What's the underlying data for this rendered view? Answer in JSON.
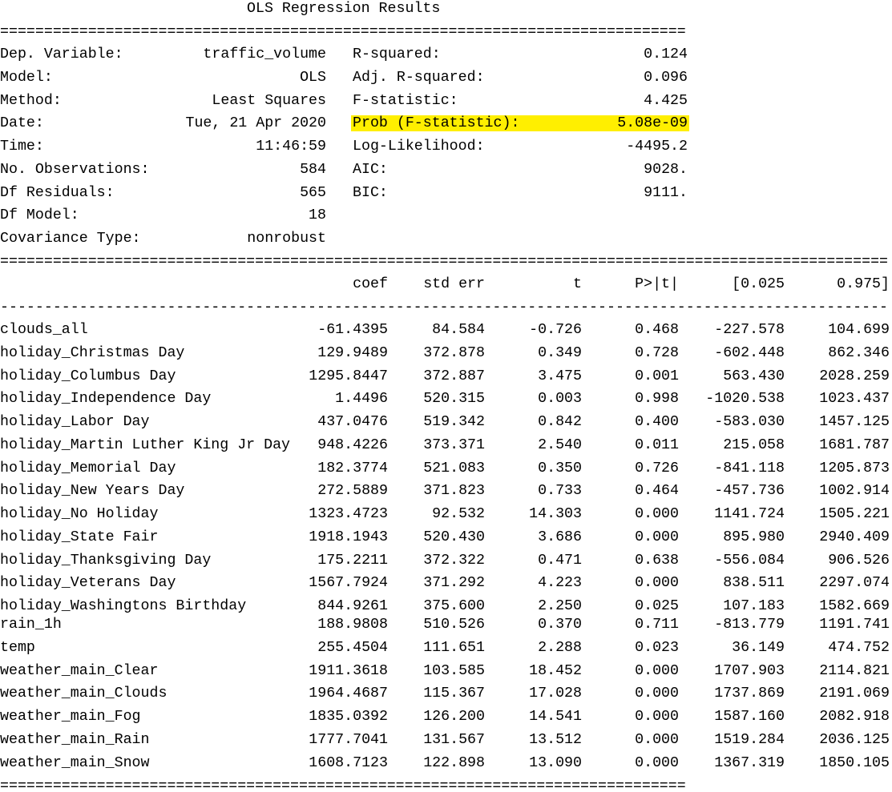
{
  "title": "OLS Regression Results",
  "separators": [
    "==============================================================================",
    "=====================================================================================================",
    "-----------------------------------------------------------------------------------------------------",
    "=============================================================================="
  ],
  "summary_left": [
    [
      "Dep. Variable:",
      "traffic_volume"
    ],
    [
      "Model:",
      "OLS"
    ],
    [
      "Method:",
      "Least Squares"
    ],
    [
      "Date:",
      "Tue, 21 Apr 2020"
    ],
    [
      "Time:",
      "11:46:59"
    ],
    [
      "No. Observations:",
      "584"
    ],
    [
      "Df Residuals:",
      "565"
    ],
    [
      "Df Model:",
      "18"
    ],
    [
      "Covariance Type:",
      "nonrobust"
    ]
  ],
  "summary_right": [
    [
      "R-squared:",
      "0.124"
    ],
    [
      "Adj. R-squared:",
      "0.096"
    ],
    [
      "F-statistic:",
      "4.425"
    ],
    [
      "Prob (F-statistic):",
      "5.08e-09"
    ],
    [
      "Log-Likelihood:",
      "-4495.2"
    ],
    [
      "AIC:",
      "9028."
    ],
    [
      "BIC:",
      "9111."
    ]
  ],
  "table": {
    "columns": [
      "coef",
      "std err",
      "t",
      "P>|t|",
      "[0.025",
      "0.975]"
    ],
    "rows": [
      [
        "clouds_all",
        "-61.4395",
        "84.584",
        "-0.726",
        "0.468",
        "-227.578",
        "104.699"
      ],
      [
        "holiday_Christmas Day",
        "129.9489",
        "372.878",
        "0.349",
        "0.728",
        "-602.448",
        "862.346"
      ],
      [
        "holiday_Columbus Day",
        "1295.8447",
        "372.887",
        "3.475",
        "0.001",
        "563.430",
        "2028.259"
      ],
      [
        "holiday_Independence Day",
        "1.4496",
        "520.315",
        "0.003",
        "0.998",
        "-1020.538",
        "1023.437"
      ],
      [
        "holiday_Labor Day",
        "437.0476",
        "519.342",
        "0.842",
        "0.400",
        "-583.030",
        "1457.125"
      ],
      [
        "holiday_Martin Luther King Jr Day",
        "948.4226",
        "373.371",
        "2.540",
        "0.011",
        "215.058",
        "1681.787"
      ],
      [
        "holiday_Memorial Day",
        "182.3774",
        "521.083",
        "0.350",
        "0.726",
        "-841.118",
        "1205.873"
      ],
      [
        "holiday_New Years Day",
        "272.5889",
        "371.823",
        "0.733",
        "0.464",
        "-457.736",
        "1002.914"
      ],
      [
        "holiday_No Holiday",
        "1323.4723",
        "92.532",
        "14.303",
        "0.000",
        "1141.724",
        "1505.221"
      ],
      [
        "holiday_State Fair",
        "1918.1943",
        "520.430",
        "3.686",
        "0.000",
        "895.980",
        "2940.409"
      ],
      [
        "holiday_Thanksgiving Day",
        "175.2211",
        "372.322",
        "0.471",
        "0.638",
        "-556.084",
        "906.526"
      ],
      [
        "holiday_Veterans Day",
        "1567.7924",
        "371.292",
        "4.223",
        "0.000",
        "838.511",
        "2297.074"
      ],
      [
        "holiday_Washingtons Birthday",
        "844.9261",
        "375.600",
        "2.250",
        "0.025",
        "107.183",
        "1582.669"
      ],
      [
        "rain_1h",
        "188.9808",
        "510.526",
        "0.370",
        "0.711",
        "-813.779",
        "1191.741"
      ],
      [
        "temp",
        "255.4504",
        "111.651",
        "2.288",
        "0.023",
        "36.149",
        "474.752"
      ],
      [
        "weather_main_Clear",
        "1911.3618",
        "103.585",
        "18.452",
        "0.000",
        "1707.903",
        "2114.821"
      ],
      [
        "weather_main_Clouds",
        "1964.4687",
        "115.367",
        "17.028",
        "0.000",
        "1737.869",
        "2191.069"
      ],
      [
        "weather_main_Fog",
        "1835.0392",
        "126.200",
        "14.541",
        "0.000",
        "1587.160",
        "2082.918"
      ],
      [
        "weather_main_Rain",
        "1777.7041",
        "131.567",
        "13.512",
        "0.000",
        "1519.284",
        "2036.125"
      ],
      [
        "weather_main_Snow",
        "1608.7123",
        "122.898",
        "13.090",
        "0.000",
        "1367.319",
        "1850.105"
      ]
    ]
  }
}
